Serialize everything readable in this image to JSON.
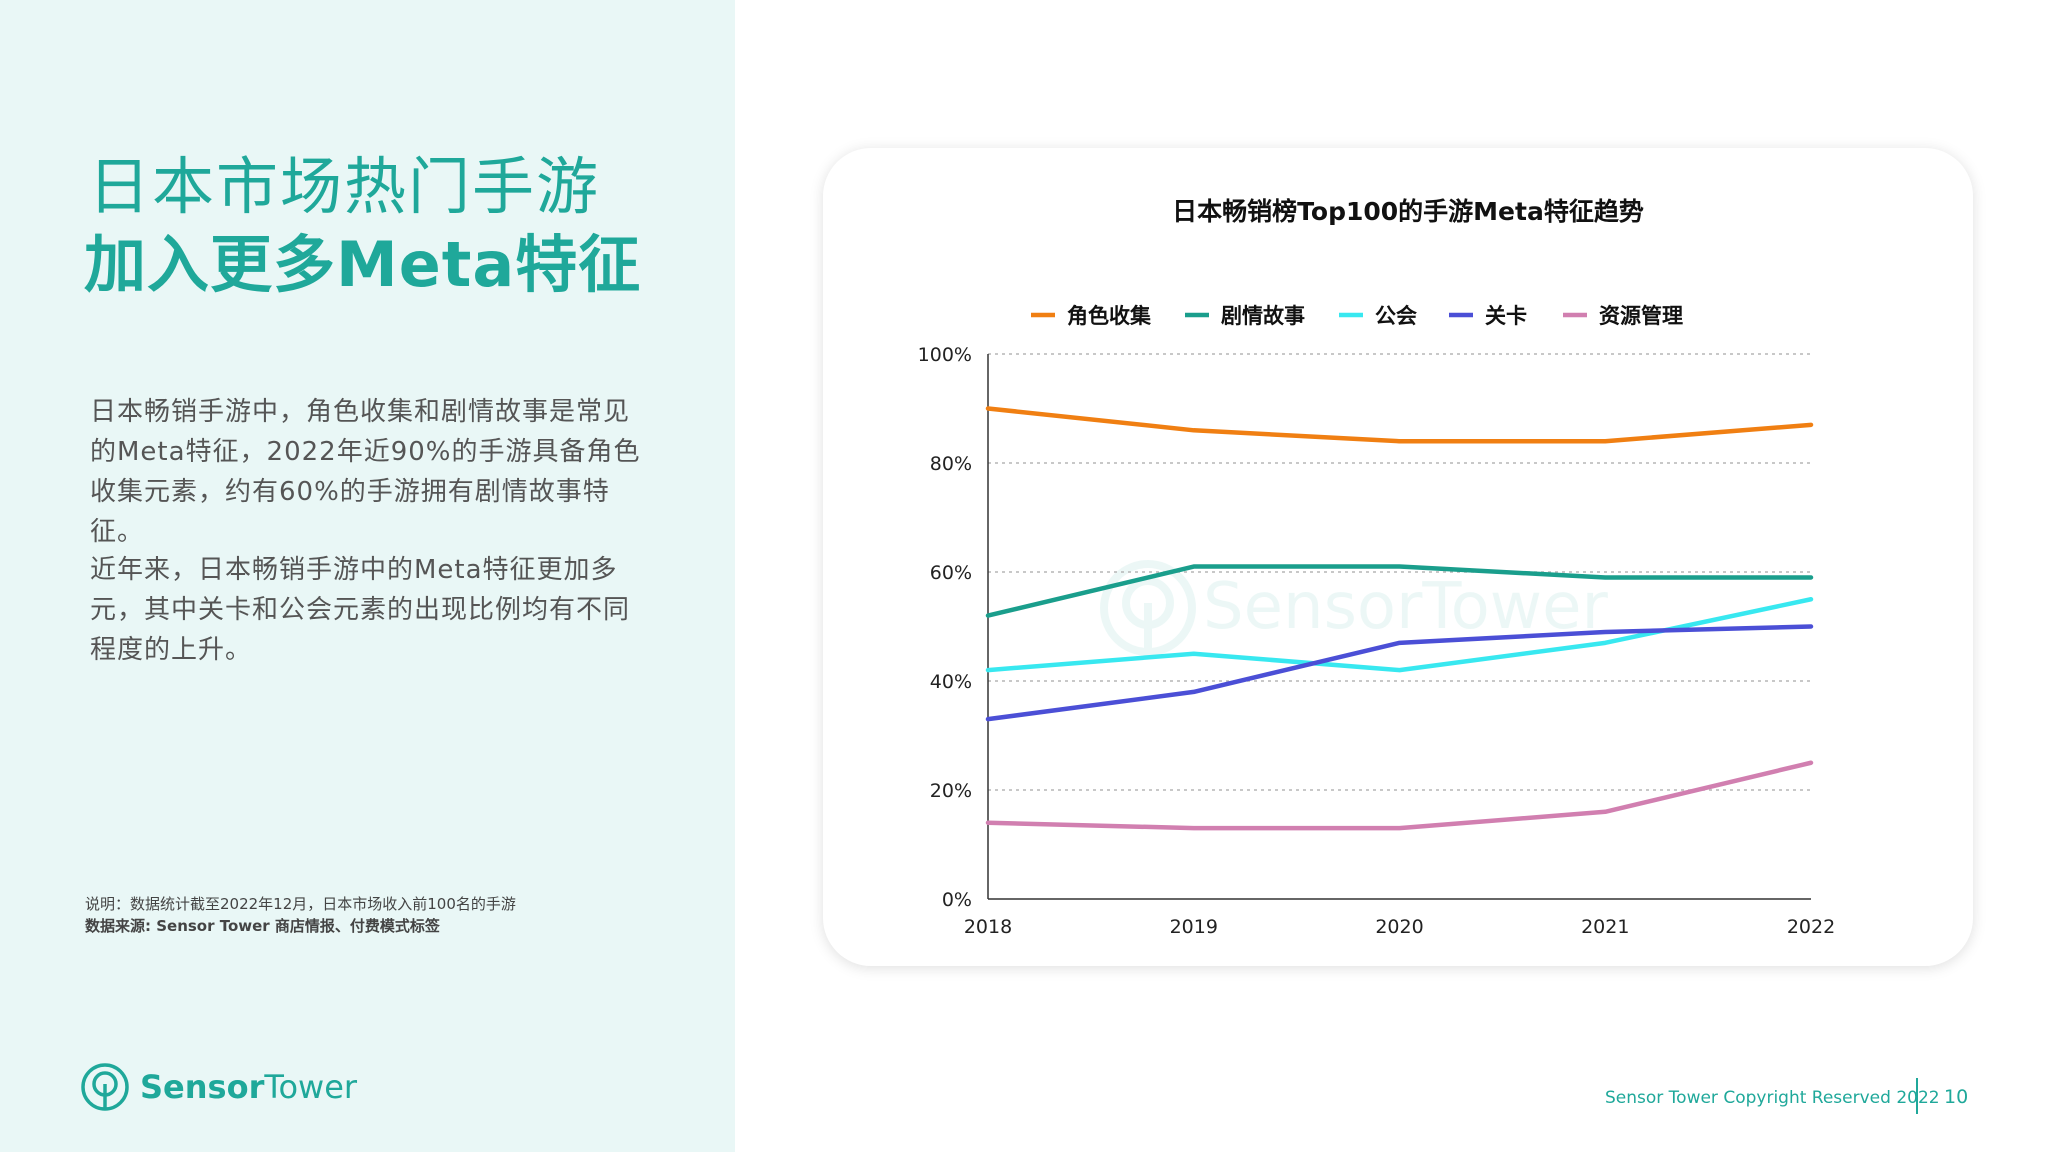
{
  "left": {
    "title_line1": "日本市场热门手游",
    "title_line2": "加入更多Meta特征",
    "paragraph1": "日本畅销手游中，角色收集和剧情故事是常见的Meta特征，2022年近90%的手游具备角色收集元素，约有60%的手游拥有剧情故事特征。",
    "paragraph2": "近年来，日本畅销手游中的Meta特征更加多元，其中关卡和公会元素的出现比例均有不同程度的上升。",
    "note": "说明：数据统计截至2022年12月，日本市场收入前100名的手游",
    "source": "数据来源: Sensor Tower 商店情报、付费模式标签"
  },
  "logo": {
    "part1": "Sensor",
    "part2": "Tower"
  },
  "footer": {
    "copyright": "Sensor Tower Copyright Reserved 2022",
    "page": "10"
  },
  "watermark": "SensorTower",
  "colors": {
    "accent": "#1fa89a",
    "panel_bg": "#e9f7f6"
  },
  "chart_data": {
    "type": "line",
    "title": "日本畅销榜Top100的手游Meta特征趋势",
    "categories": [
      "2018",
      "2019",
      "2020",
      "2021",
      "2022"
    ],
    "y_ticks": [
      "0%",
      "20%",
      "40%",
      "60%",
      "80%",
      "100%"
    ],
    "ylim": [
      0,
      100
    ],
    "grid": true,
    "legend_position": "top",
    "series": [
      {
        "name": "角色收集",
        "color": "#f07f12",
        "values": [
          90,
          86,
          84,
          84,
          87
        ]
      },
      {
        "name": "剧情故事",
        "color": "#1a9e8c",
        "values": [
          52,
          61,
          61,
          59,
          59
        ]
      },
      {
        "name": "公会",
        "color": "#38e8f0",
        "values": [
          42,
          45,
          42,
          47,
          55
        ]
      },
      {
        "name": "关卡",
        "color": "#4b4fd6",
        "values": [
          33,
          38,
          47,
          49,
          50
        ]
      },
      {
        "name": "资源管理",
        "color": "#d17fb0",
        "values": [
          14,
          13,
          13,
          16,
          25
        ]
      }
    ]
  }
}
